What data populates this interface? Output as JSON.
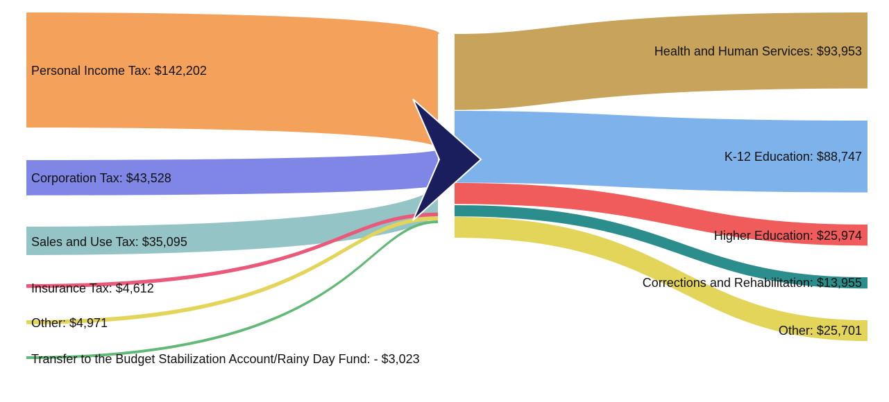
{
  "chart_data": {
    "type": "sankey",
    "sources": [
      {
        "label": "Personal Income Tax: $142,202",
        "name": "Personal Income Tax",
        "value": 142202,
        "color": "#f4a25b"
      },
      {
        "label": "Corporation Tax: $43,528",
        "name": "Corporation Tax",
        "value": 43528,
        "color": "#7f86e6"
      },
      {
        "label": "Sales and Use Tax: $35,095",
        "name": "Sales and Use Tax",
        "value": 35095,
        "color": "#95c4c6"
      },
      {
        "label": "Insurance Tax: $4,612",
        "name": "Insurance Tax",
        "value": 4612,
        "color": "#e8597a"
      },
      {
        "label": "Other: $4,971",
        "name": "Other",
        "value": 4971,
        "color": "#e3d45a"
      },
      {
        "label": "Transfer to the Budget Stabilization Account/Rainy Day Fund: - $3,023",
        "name": "Transfer to the Budget Stabilization Account/Rainy Day Fund",
        "value": -3023,
        "color": "#62b877"
      }
    ],
    "targets": [
      {
        "label": "Health and Human Services: $93,953",
        "name": "Health and Human Services",
        "value": 93953,
        "color": "#c8a35c"
      },
      {
        "label": "K-12 Education: $88,747",
        "name": "K-12 Education",
        "value": 88747,
        "color": "#7db3ea"
      },
      {
        "label": "Higher Education: $25,974",
        "name": "Higher Education",
        "value": 25974,
        "color": "#f05b5b"
      },
      {
        "label": "Corrections and Rehabilitation: $13,955",
        "name": "Corrections and Rehabilitation",
        "value": 13955,
        "color": "#2c8e8c"
      },
      {
        "label": "Other: $25,701",
        "name": "Other",
        "value": 25701,
        "color": "#e3d45a"
      }
    ],
    "center_arrow_color": "#1b1e5c"
  }
}
